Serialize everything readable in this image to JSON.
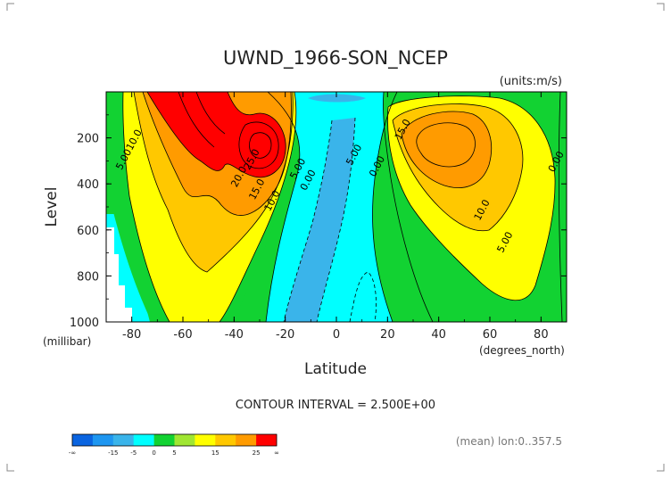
{
  "chart_data": {
    "type": "heatmap",
    "title": "UWND_1966-SON_NCEP",
    "units_label": "(units:m/s)",
    "xlabel": "Latitude",
    "x_units_label": "(degrees_north)",
    "ylabel": "Level",
    "y_units_label": "(millibar)",
    "xlim": [
      -90,
      90
    ],
    "ylim": [
      1000,
      0
    ],
    "x_ticks": [
      -80,
      -60,
      -40,
      -20,
      0,
      20,
      40,
      60,
      80
    ],
    "x_tick_labels": [
      "-80",
      "-60",
      "-40",
      "-20",
      "0",
      "20",
      "40",
      "60",
      "80"
    ],
    "y_ticks": [
      200,
      400,
      600,
      800,
      1000
    ],
    "y_tick_labels": [
      "200",
      "400",
      "600",
      "800",
      "1000"
    ],
    "contour_interval_text": "CONTOUR INTERVAL = 2.500E+00",
    "footer_text": "(mean) lon:0..357.5",
    "contour_labels": [
      {
        "text": "10.0",
        "lat": -78,
        "lev": 215
      },
      {
        "text": "5.00",
        "lat": -82,
        "lev": 300
      },
      {
        "text": "25.0",
        "lat": -32,
        "lev": 300
      },
      {
        "text": "20.0",
        "lat": -37,
        "lev": 375
      },
      {
        "text": "15.0",
        "lat": -30,
        "lev": 430
      },
      {
        "text": "10.0",
        "lat": -24,
        "lev": 480
      },
      {
        "text": "5.00",
        "lat": -14,
        "lev": 340
      },
      {
        "text": "0.00",
        "lat": -10,
        "lev": 390
      },
      {
        "text": "5.00",
        "lat": 8,
        "lev": 280
      },
      {
        "text": "0.00",
        "lat": 17,
        "lev": 330
      },
      {
        "text": "15.0",
        "lat": 27,
        "lev": 170
      },
      {
        "text": "10.0",
        "lat": 58,
        "lev": 520
      },
      {
        "text": "5.00",
        "lat": 67,
        "lev": 660
      },
      {
        "text": "0.00",
        "lat": 87,
        "lev": 310
      }
    ],
    "colorbar": {
      "colors": [
        "#0a64e0",
        "#1e96f0",
        "#3ab4ea",
        "#00ffff",
        "#12d232",
        "#a0e632",
        "#ffff00",
        "#ffc800",
        "#ff9b00",
        "#ff0000"
      ],
      "tick_labels": [
        "-∞",
        "-15",
        "-5",
        "0",
        "5",
        "15",
        "25",
        "∞"
      ]
    },
    "bands": [
      {
        "name": "lt-0",
        "color": "#3ab4ea"
      },
      {
        "name": "0-5",
        "color": "#00ffff"
      },
      {
        "name": "5-10",
        "color": "#12d232"
      },
      {
        "name": "10-15",
        "color": "#ffff00"
      },
      {
        "name": "15-20",
        "color": "#ffc800"
      },
      {
        "name": "20-25",
        "color": "#ff9b00"
      },
      {
        "name": "gt-25",
        "color": "#ff0000"
      }
    ]
  }
}
